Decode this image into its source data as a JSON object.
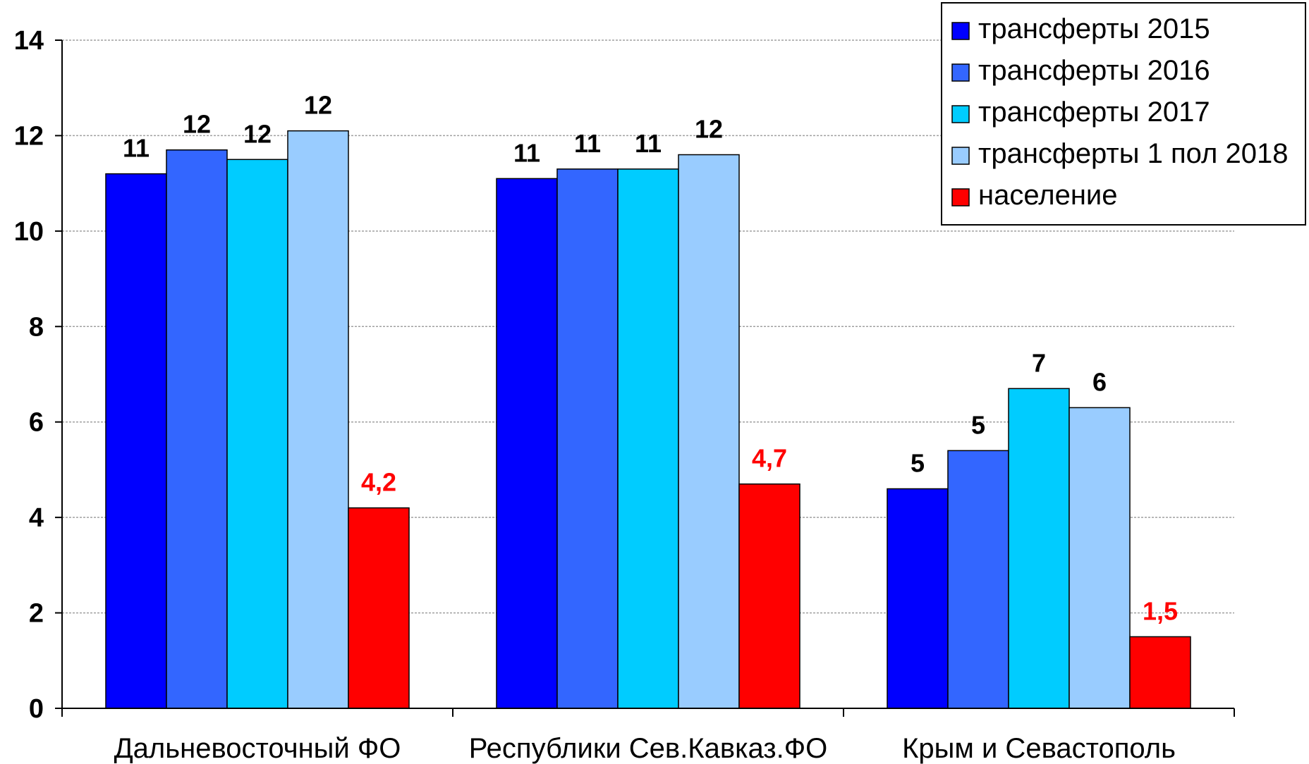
{
  "chart_data": {
    "type": "bar",
    "categories": [
      "Дальневосточный ФО",
      "Республики Сев.Кавказ.ФО",
      "Крым и Севастополь"
    ],
    "series": [
      {
        "name": "трансферты 2015",
        "color": "#0000FF",
        "values": [
          11.2,
          11.1,
          4.6
        ],
        "labels": [
          "11",
          "11",
          "5"
        ],
        "label_color": "#000000"
      },
      {
        "name": "трансферты 2016",
        "color": "#3366FF",
        "values": [
          11.7,
          11.3,
          5.4
        ],
        "labels": [
          "12",
          "11",
          "5"
        ],
        "label_color": "#000000"
      },
      {
        "name": "трансферты 2017",
        "color": "#00CCFF",
        "values": [
          11.5,
          11.3,
          6.7
        ],
        "labels": [
          "12",
          "11",
          "7"
        ],
        "label_color": "#000000"
      },
      {
        "name": "трансферты 1 пол 2018",
        "color": "#99CCFF",
        "values": [
          12.1,
          11.6,
          6.3
        ],
        "labels": [
          "12",
          "12",
          "6"
        ],
        "label_color": "#000000"
      },
      {
        "name": "население",
        "color": "#FF0000",
        "values": [
          4.2,
          4.7,
          1.5
        ],
        "labels": [
          "4,2",
          "4,7",
          "1,5"
        ],
        "label_color": "#FF0000"
      }
    ],
    "ylim": [
      0,
      14
    ],
    "yticks": [
      "0",
      "2",
      "4",
      "6",
      "8",
      "10",
      "12",
      "14"
    ],
    "grid": true,
    "legend_position": "top-right"
  }
}
